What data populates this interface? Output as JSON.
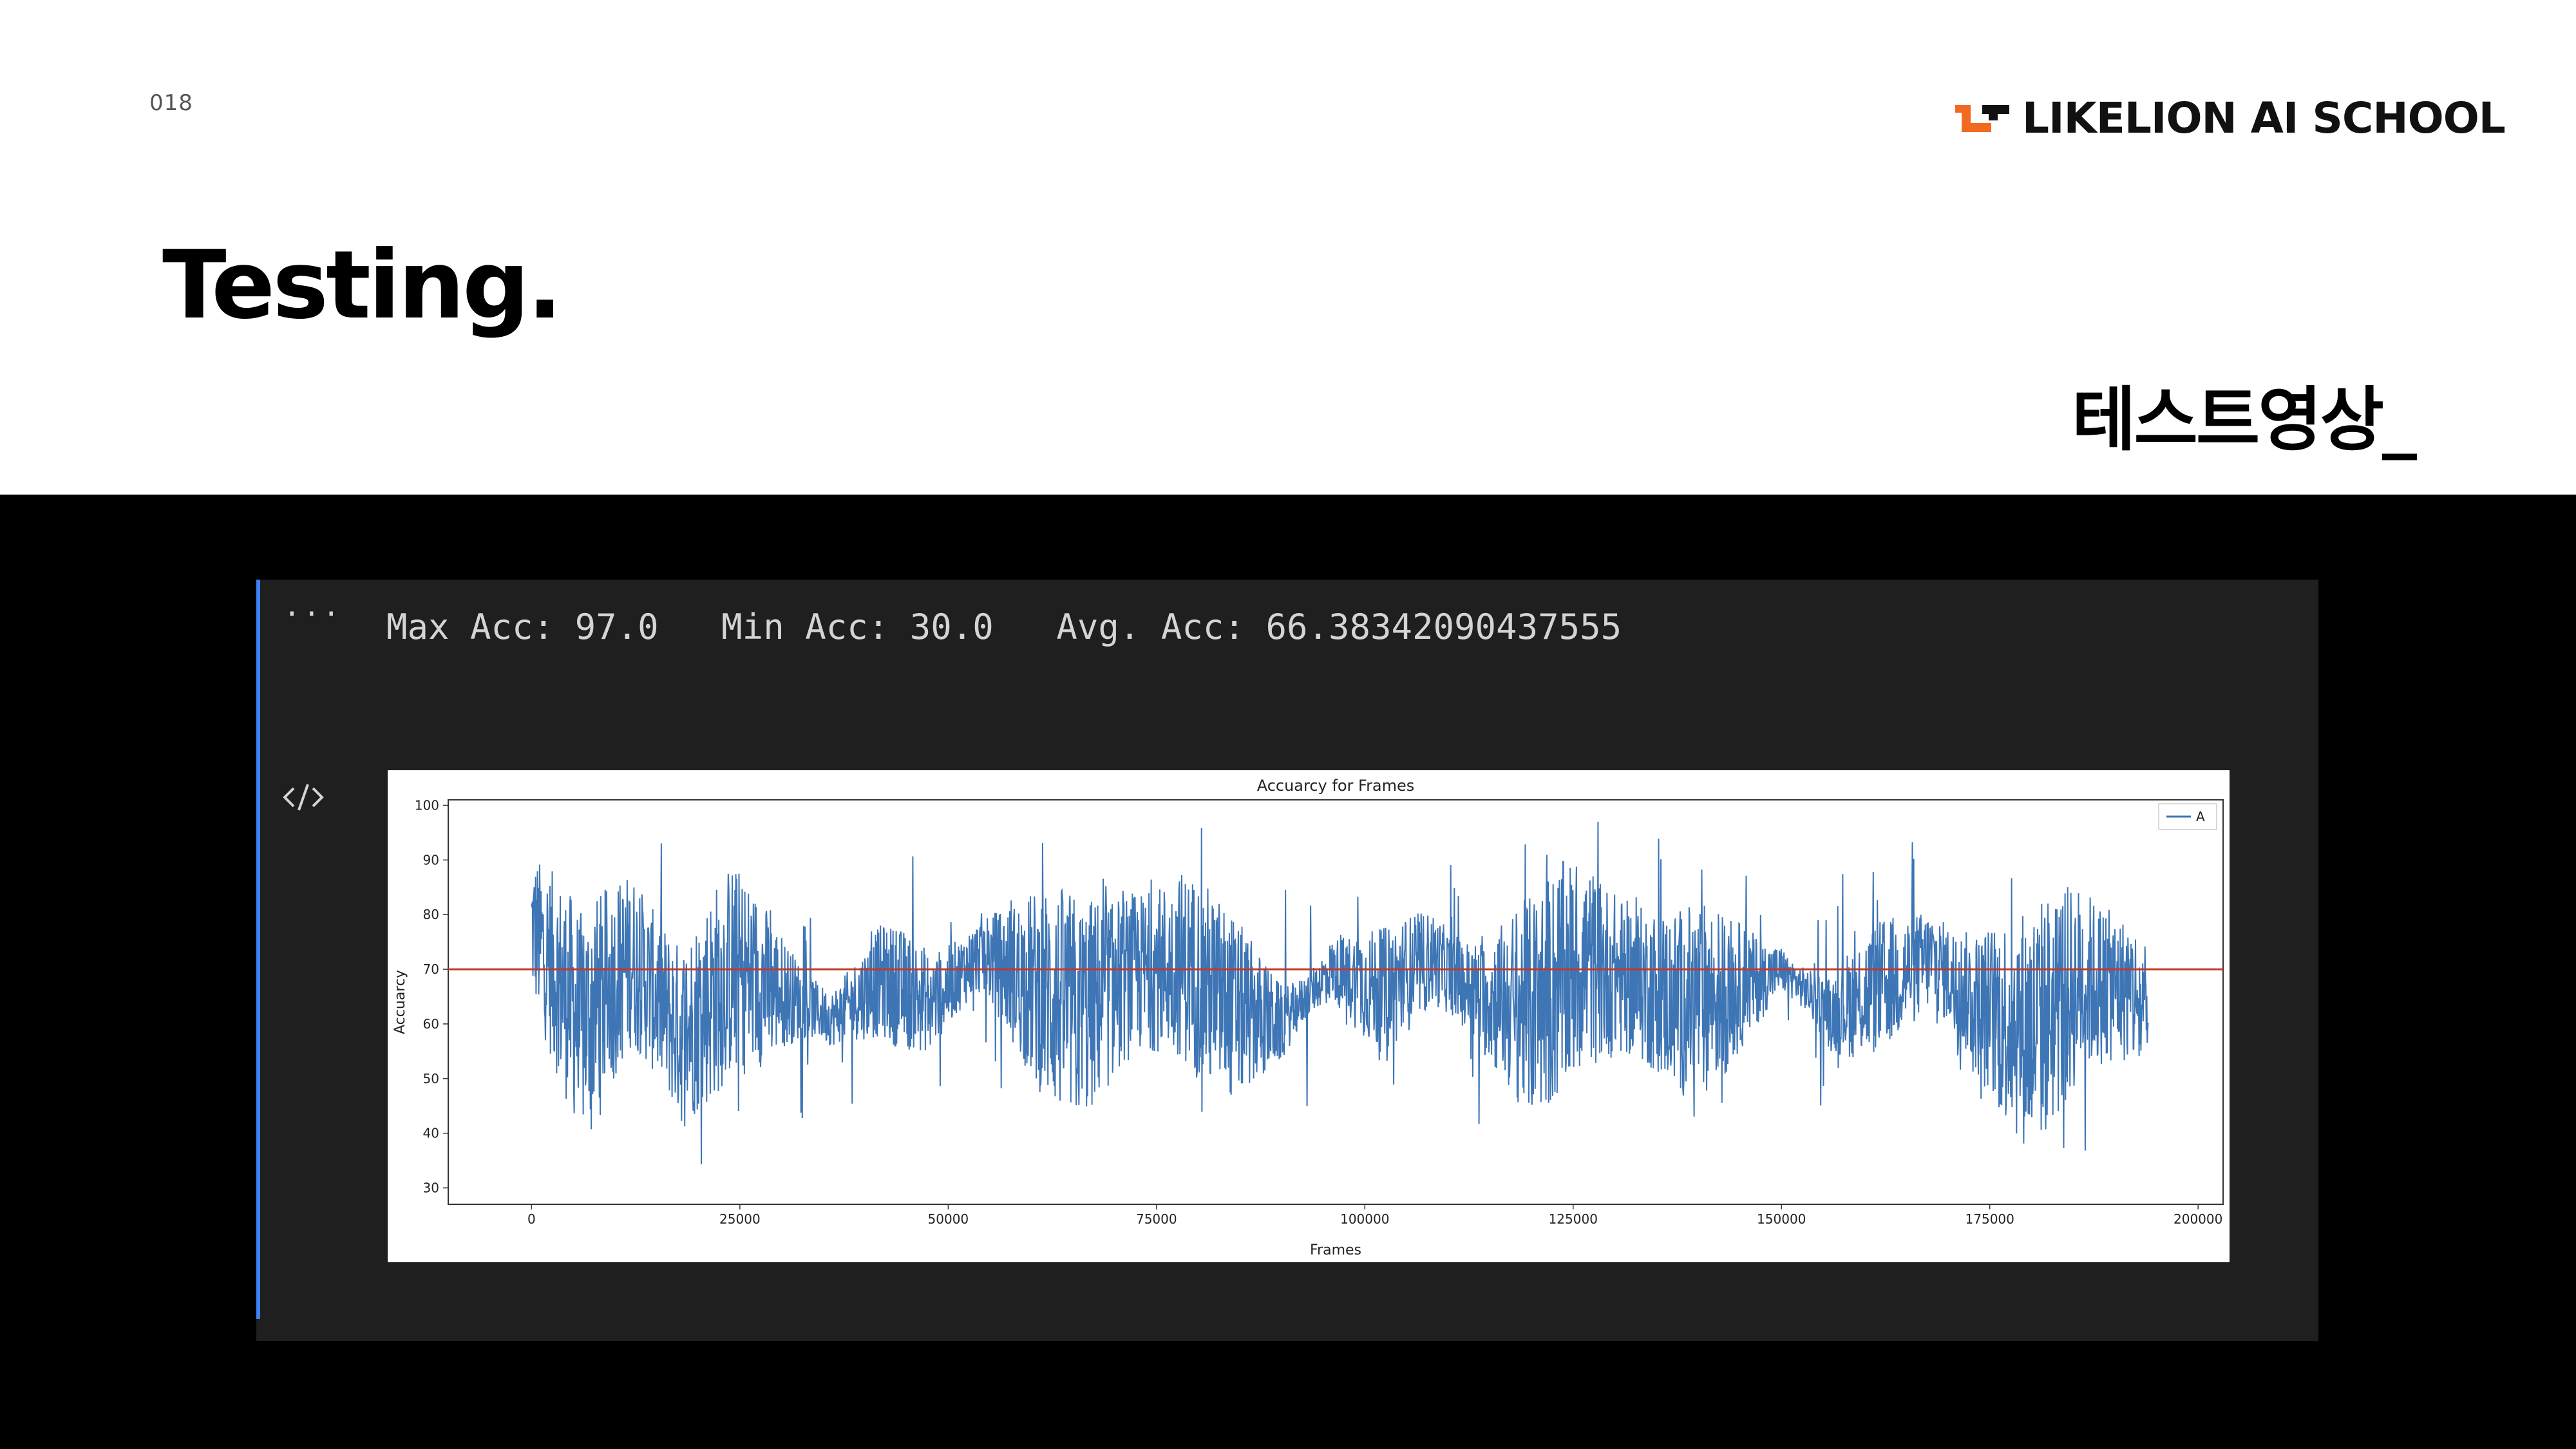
{
  "slide": {
    "page_number": "018",
    "brand": {
      "name": "LIKELION AI SCHOOL",
      "accent_color": "#f26a21",
      "logo_icon": "likelion-logo-icon"
    },
    "title": "Testing.",
    "subtitle": "테스트영상_"
  },
  "cell": {
    "more_icon": "ellipsis-icon",
    "code_icon": "code-icon",
    "output_text": "Max Acc: 97.0   Min Acc: 30.0   Avg. Acc: 66.38342090437555",
    "accent_color": "#3b82f6"
  },
  "chart_data": {
    "type": "line",
    "title": "Accuarcy for Frames",
    "xlabel": "Frames",
    "ylabel": "Accuarcy",
    "xlim": [
      -10000,
      203000
    ],
    "ylim": [
      27,
      101
    ],
    "xticks": [
      0,
      25000,
      50000,
      75000,
      100000,
      125000,
      150000,
      175000,
      200000
    ],
    "xtick_labels": [
      "0",
      "25000",
      "50000",
      "75000",
      "100000",
      "125000",
      "150000",
      "175000",
      "200000"
    ],
    "yticks": [
      30,
      40,
      50,
      60,
      70,
      80,
      90,
      100
    ],
    "ytick_labels": [
      "30",
      "40",
      "50",
      "60",
      "70",
      "80",
      "90",
      "100"
    ],
    "grid": false,
    "legend": {
      "position": "top-right",
      "entries": [
        "A"
      ]
    },
    "threshold": {
      "y": 70,
      "color": "#c0392b"
    },
    "series": [
      {
        "name": "A",
        "color": "#3d75b5",
        "x_start": 0,
        "x_end": 194000,
        "approx_stats": {
          "max": 97.0,
          "min": 30.0,
          "mean": 66.38
        },
        "x": [
          0,
          6000,
          12000,
          18000,
          24000,
          30000,
          36000,
          42000,
          48000,
          54000,
          60000,
          66000,
          72000,
          78000,
          84000,
          90000,
          96000,
          102000,
          108000,
          114000,
          120000,
          126000,
          132000,
          138000,
          144000,
          150000,
          156000,
          162000,
          168000,
          174000,
          180000,
          186000,
          192000,
          194000
        ],
        "values": [
          78,
          60,
          72,
          58,
          70,
          66,
          61,
          68,
          64,
          73,
          67,
          62,
          69,
          71,
          63,
          60,
          70,
          66,
          72,
          65,
          63,
          71,
          68,
          64,
          66,
          70,
          62,
          67,
          72,
          63,
          59,
          68,
          66,
          60
        ]
      }
    ]
  }
}
